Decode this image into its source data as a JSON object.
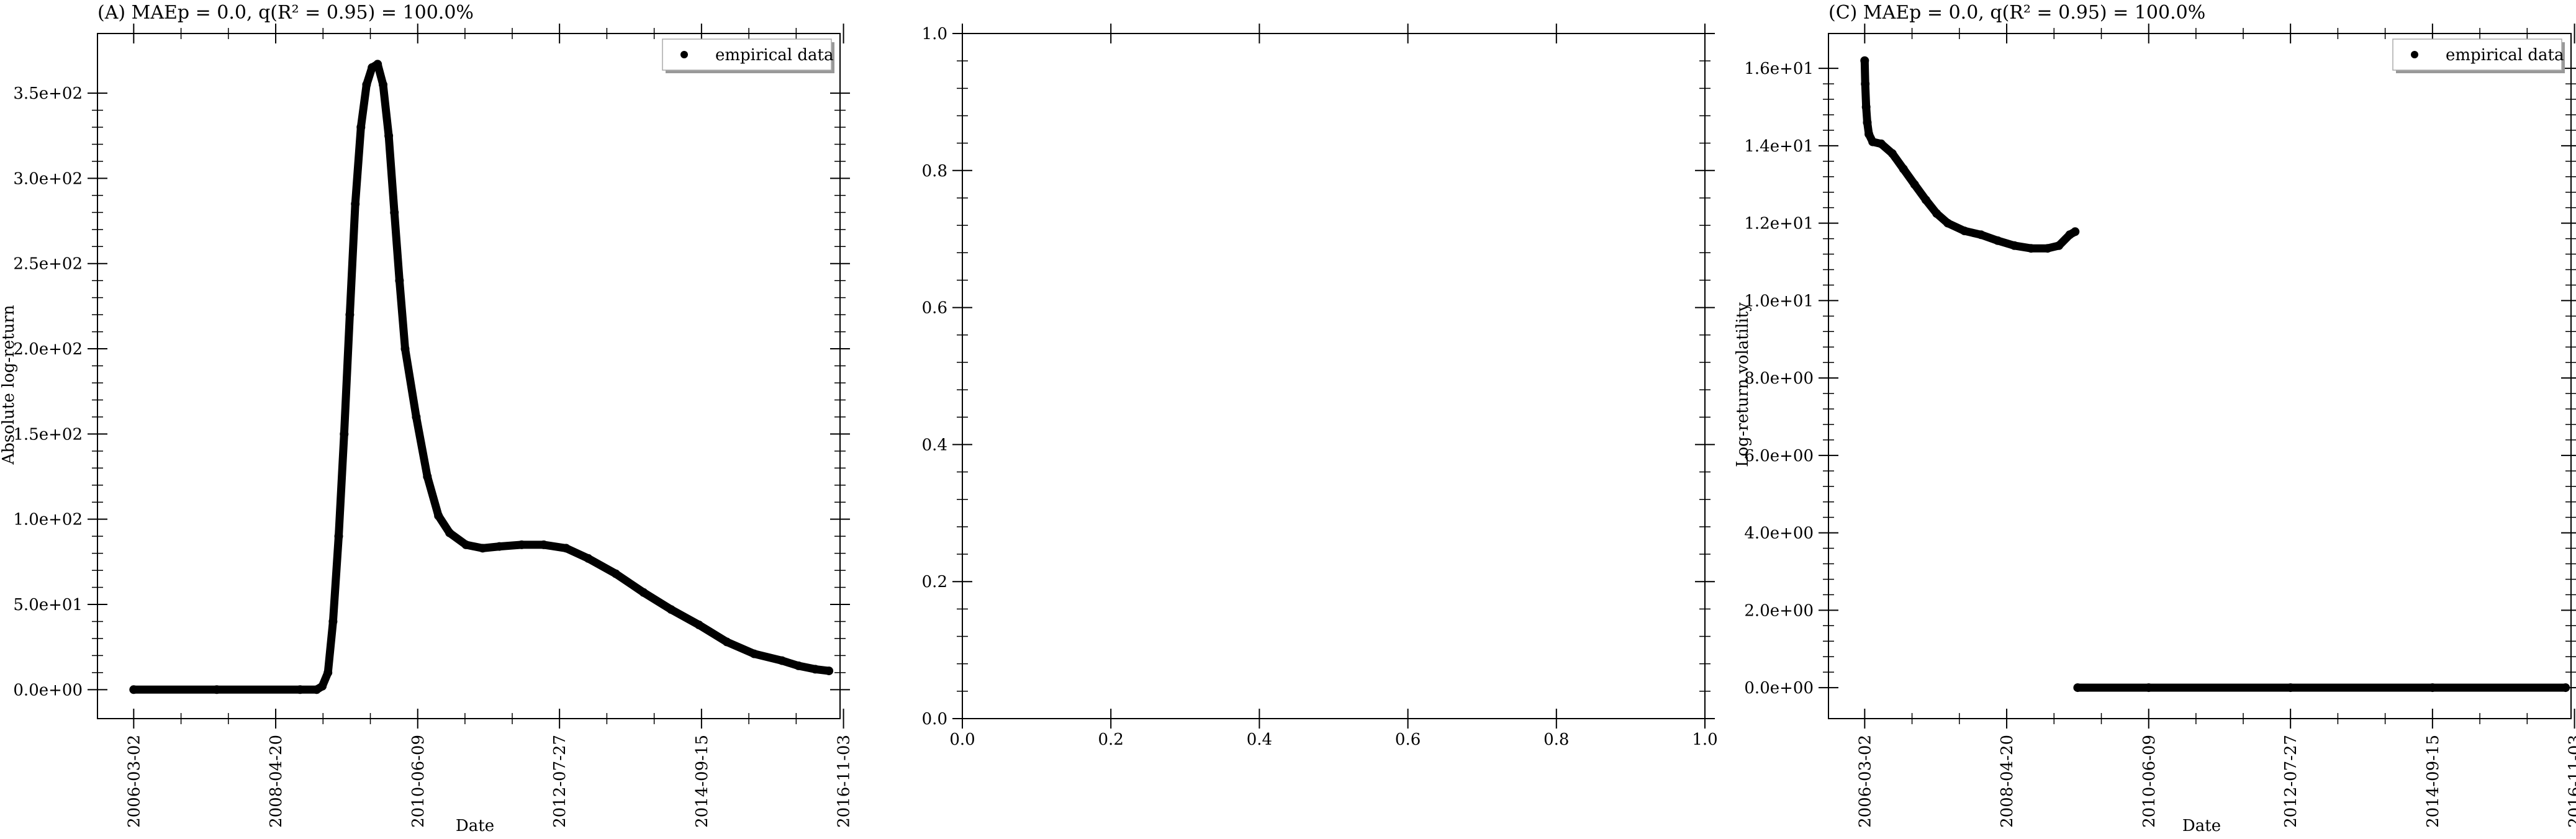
{
  "chart_data": [
    {
      "id": "A",
      "type": "scatter",
      "title": "(A) MAEp = 0.0, q(R² = 0.95) = 100.0%",
      "xlabel": "Date",
      "ylabel": "Absolute log-return",
      "x_axis": "date",
      "xlim": [
        "2005-08-15",
        "2016-10-15"
      ],
      "ylim": [
        -17,
        385
      ],
      "xticks": [
        "2006-03-02",
        "2008-04-20",
        "2010-06-09",
        "2012-07-27",
        "2014-09-15",
        "2016-11-03"
      ],
      "yticks": [
        0,
        50,
        100,
        150,
        200,
        250,
        300,
        350
      ],
      "ytick_labels": [
        "0.0e+00",
        "5.0e+01",
        "1.0e+02",
        "1.5e+02",
        "2.0e+02",
        "2.5e+02",
        "3.0e+02",
        "3.5e+02"
      ],
      "legend": {
        "labels": [
          "empirical data"
        ],
        "position": "upper right"
      },
      "grid": false,
      "series": [
        {
          "name": "empirical data",
          "marker": "dot",
          "color": "#000000",
          "points": [
            [
              "2006-03-02",
              0
            ],
            [
              "2007-06-01",
              0
            ],
            [
              "2008-09-01",
              0
            ],
            [
              "2008-12-01",
              0
            ],
            [
              "2009-01-01",
              2
            ],
            [
              "2009-02-01",
              10
            ],
            [
              "2009-03-01",
              40
            ],
            [
              "2009-04-01",
              90
            ],
            [
              "2009-05-01",
              150
            ],
            [
              "2009-06-01",
              220
            ],
            [
              "2009-07-01",
              285
            ],
            [
              "2009-08-01",
              330
            ],
            [
              "2009-09-01",
              355
            ],
            [
              "2009-10-01",
              365
            ],
            [
              "2009-11-01",
              367
            ],
            [
              "2009-12-01",
              355
            ],
            [
              "2010-01-01",
              325
            ],
            [
              "2010-02-01",
              280
            ],
            [
              "2010-03-01",
              240
            ],
            [
              "2010-04-01",
              200
            ],
            [
              "2010-06-01",
              160
            ],
            [
              "2010-08-01",
              125
            ],
            [
              "2010-10-01",
              102
            ],
            [
              "2010-12-01",
              92
            ],
            [
              "2011-03-01",
              85
            ],
            [
              "2011-06-01",
              83
            ],
            [
              "2011-09-01",
              84
            ],
            [
              "2012-01-01",
              85
            ],
            [
              "2012-05-01",
              85
            ],
            [
              "2012-09-01",
              83
            ],
            [
              "2013-01-01",
              77
            ],
            [
              "2013-06-01",
              68
            ],
            [
              "2013-11-01",
              57
            ],
            [
              "2014-04-01",
              47
            ],
            [
              "2014-09-01",
              38
            ],
            [
              "2015-02-01",
              28
            ],
            [
              "2015-07-01",
              21
            ],
            [
              "2015-12-01",
              17
            ],
            [
              "2016-03-01",
              14
            ],
            [
              "2016-06-01",
              12
            ],
            [
              "2016-08-15",
              11
            ]
          ]
        }
      ]
    },
    {
      "id": "B",
      "type": "scatter",
      "title": "",
      "xlabel": "",
      "ylabel": "",
      "xlim": [
        0,
        1
      ],
      "ylim": [
        0,
        1
      ],
      "xticks": [
        0,
        0.2,
        0.4,
        0.6,
        0.8,
        1.0
      ],
      "xtick_labels": [
        "0.0",
        "0.2",
        "0.4",
        "0.6",
        "0.8",
        "1.0"
      ],
      "yticks": [
        0,
        0.2,
        0.4,
        0.6,
        0.8,
        1.0
      ],
      "ytick_labels": [
        "0.0",
        "0.2",
        "0.4",
        "0.6",
        "0.8",
        "1.0"
      ],
      "grid": false,
      "series": []
    },
    {
      "id": "C",
      "type": "scatter",
      "title": "(C) MAEp = 0.0, q(R² = 0.95) = 100.0%",
      "xlabel": "Date",
      "ylabel": "Log-return volatility",
      "x_axis": "date",
      "xlim": [
        "2005-08-15",
        "2016-10-15"
      ],
      "ylim": [
        -0.8,
        16.9
      ],
      "xticks": [
        "2006-03-02",
        "2008-04-20",
        "2010-06-09",
        "2012-07-27",
        "2014-09-15",
        "2016-11-03"
      ],
      "yticks": [
        0,
        2,
        4,
        6,
        8,
        10,
        12,
        14,
        16
      ],
      "ytick_labels": [
        "0.0e+00",
        "2.0e+00",
        "4.0e+00",
        "6.0e+00",
        "8.0e+00",
        "1.0e+01",
        "1.2e+01",
        "1.4e+01",
        "1.6e+01"
      ],
      "legend": {
        "labels": [
          "empirical data"
        ],
        "position": "upper right"
      },
      "grid": false,
      "series": [
        {
          "name": "empirical data",
          "marker": "dot",
          "color": "#000000",
          "points": [
            [
              "2006-03-02",
              16.2
            ],
            [
              "2006-03-05",
              15.6
            ],
            [
              "2006-03-10",
              15.0
            ],
            [
              "2006-03-16",
              14.6
            ],
            [
              "2006-03-25",
              14.3
            ],
            [
              "2006-04-15",
              14.1
            ],
            [
              "2006-06-01",
              14.05
            ],
            [
              "2006-08-01",
              13.8
            ],
            [
              "2006-10-01",
              13.4
            ],
            [
              "2006-12-01",
              13.0
            ],
            [
              "2007-02-01",
              12.6
            ],
            [
              "2007-04-01",
              12.25
            ],
            [
              "2007-06-01",
              12.0
            ],
            [
              "2007-09-01",
              11.8
            ],
            [
              "2007-12-01",
              11.7
            ],
            [
              "2008-03-01",
              11.55
            ],
            [
              "2008-06-01",
              11.42
            ],
            [
              "2008-09-01",
              11.35
            ],
            [
              "2008-12-01",
              11.35
            ],
            [
              "2009-02-01",
              11.42
            ],
            [
              "2009-04-01",
              11.7
            ],
            [
              "2009-05-01",
              11.78
            ],
            [
              "2009-05-15",
              0
            ],
            [
              "2010-06-09",
              0
            ],
            [
              "2012-07-27",
              0
            ],
            [
              "2014-09-15",
              0
            ],
            [
              "2016-09-15",
              0
            ]
          ]
        }
      ]
    }
  ]
}
